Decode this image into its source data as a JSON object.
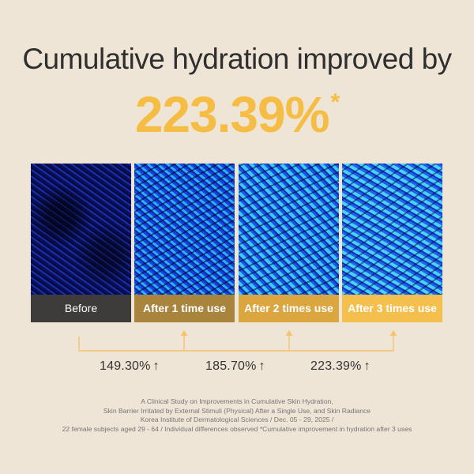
{
  "headline": "Cumulative hydration improved by",
  "big_value": "223.39%",
  "big_value_mark": "*",
  "panels": [
    {
      "caption": "Before"
    },
    {
      "caption": "After 1 time use"
    },
    {
      "caption": "After 2 times use"
    },
    {
      "caption": "After 3 times use"
    }
  ],
  "improvements": [
    {
      "value": "149.30%",
      "arrow": "↑"
    },
    {
      "value": "185.70%",
      "arrow": "↑"
    },
    {
      "value": "223.39%",
      "arrow": "↑"
    }
  ],
  "footnote": {
    "line1": "A Clinical Study on Improvements in Cumulative Skin Hydration,",
    "line2": "Skin Barrier Irritated by External Stimuli (Physical) After a Single Use, and Skin Radiance",
    "line3": "Korea Institute of Dermatological Sciences / Dec. 05 - 29, 2025 /",
    "line4": "22 female subjects aged 29 - 64 / Individual differences observed  *Cumulative improvement in hydration after 3 uses"
  },
  "colors": {
    "background": "#efe5d6",
    "accent": "#f6bd45",
    "connector": "#f3c46a"
  }
}
